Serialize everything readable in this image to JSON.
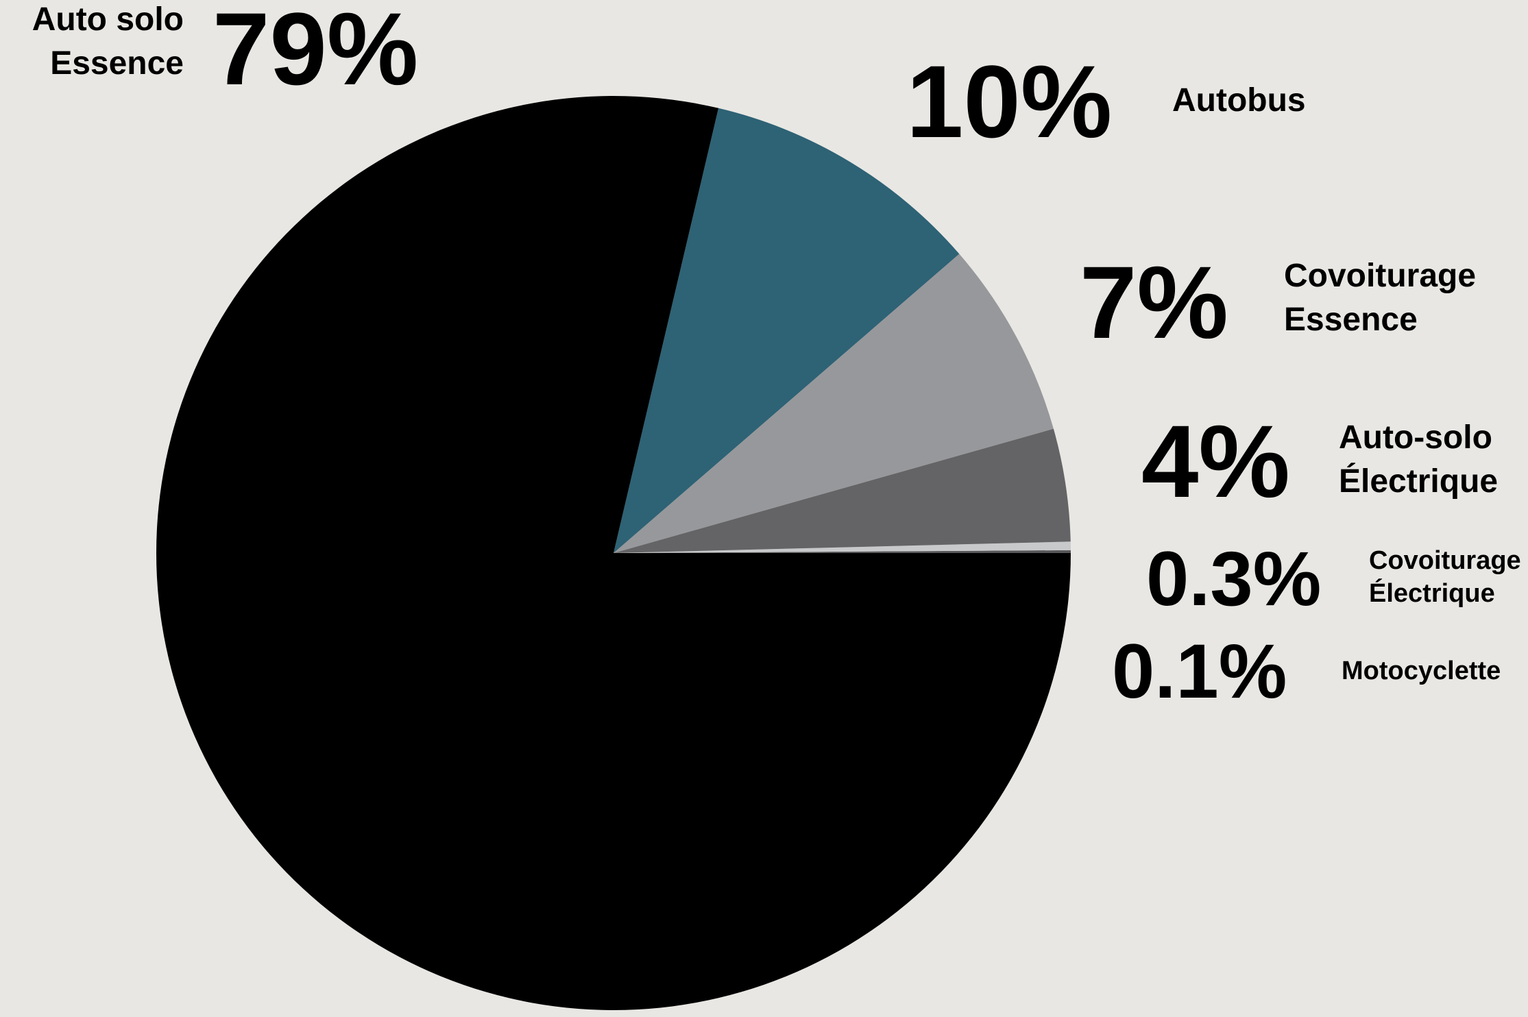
{
  "chart_data": {
    "type": "pie",
    "slices": [
      {
        "label_lines": [
          "Auto solo",
          "Essence"
        ],
        "value": 79,
        "value_text": "79%",
        "color": "#000000"
      },
      {
        "label_lines": [
          "Autobus"
        ],
        "value": 10,
        "value_text": "10%",
        "color": "#2e6275"
      },
      {
        "label_lines": [
          "Covoiturage",
          "Essence"
        ],
        "value": 7,
        "value_text": "7%",
        "color": "#97989b"
      },
      {
        "label_lines": [
          "Auto-solo",
          "Électrique"
        ],
        "value": 4,
        "value_text": "4%",
        "color": "#646466"
      },
      {
        "label_lines": [
          "Covoiturage",
          "Électrique"
        ],
        "value": 0.3,
        "value_text": "0.3%",
        "color": "#c8c9cb"
      },
      {
        "label_lines": [
          "Motocyclette"
        ],
        "value": 0.1,
        "value_text": "0.1%",
        "color": "#58585a"
      }
    ],
    "legend": "none",
    "colors": {
      "background": "#e8e7e3",
      "text": "#000000"
    }
  }
}
